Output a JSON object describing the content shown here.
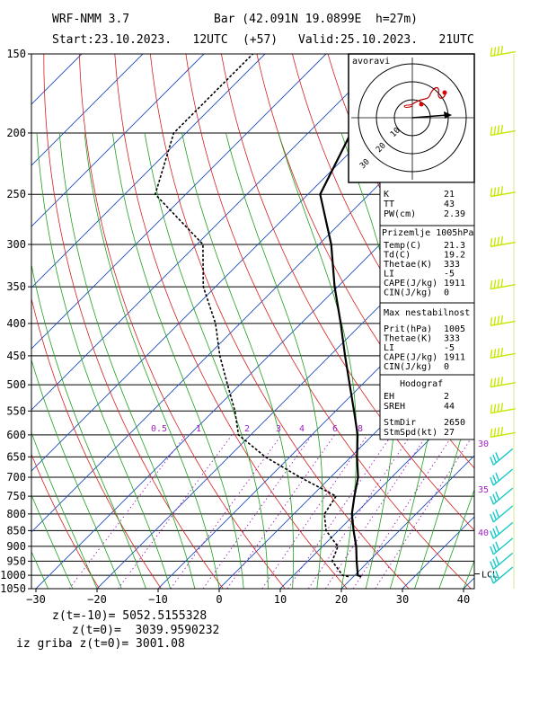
{
  "header": {
    "model": "WRF-NMM 3.7",
    "station": "Bar (42.091N 19.0899E  h=27m)",
    "start": "Start:23.10.2023.   12UTC",
    "offset": "(+57)",
    "valid": "Valid:25.10.2023.   21UTC"
  },
  "footer": {
    "line1": "z(t=-10)= 5052.5155328",
    "line2": "z(t=0)=  3039.9590232",
    "line3": "iz griba z(t=0)= 3001.08"
  },
  "hodograph": {
    "label": "avoravi",
    "ring_labels": [
      "10",
      "20",
      "30"
    ]
  },
  "indices": [
    {
      "name": "K",
      "value": "21"
    },
    {
      "name": "TT",
      "value": "43"
    },
    {
      "name": "PW(cm)",
      "value": "2.39"
    }
  ],
  "surface_block": {
    "title": "Prizemlje 1005hPa",
    "rows": [
      {
        "name": "Temp(C)",
        "value": "21.3"
      },
      {
        "name": "Td(C)",
        "value": "19.2"
      },
      {
        "name": "Thetae(K)",
        "value": "333"
      },
      {
        "name": "LI",
        "value": "-5"
      },
      {
        "name": "CAPE(J/kg)",
        "value": "1911"
      },
      {
        "name": "CIN(J/kg)",
        "value": "0"
      }
    ]
  },
  "max_block": {
    "title": "Max nestabilnost",
    "rows": [
      {
        "name": "Prit(hPa)",
        "value": "1005"
      },
      {
        "name": "Thetae(K)",
        "value": "333"
      },
      {
        "name": "LI",
        "value": "-5"
      },
      {
        "name": "CAPE(J/kg)",
        "value": "1911"
      },
      {
        "name": "CIN(J/kg)",
        "value": "0"
      }
    ]
  },
  "hodo_block": {
    "title": "Hodograf",
    "rows": [
      {
        "name": "EH",
        "value": "2"
      },
      {
        "name": "SREH",
        "value": "44"
      },
      {
        "name": "StmDir",
        "value": "2650"
      },
      {
        "name": "StmSpd(kt)",
        "value": "27"
      }
    ]
  },
  "mixing_ratio_labels": [
    "0.5",
    "1",
    "2",
    "3",
    "4",
    "6",
    "8"
  ],
  "theta_e_labels": [
    "30",
    "35",
    "40"
  ],
  "lcl_label": "LCL",
  "colors": {
    "isotherm": "#1e50b4",
    "dry_adiabat": "#d42020",
    "moist_adiabat": "#1ea01e",
    "mixing_ratio": "#a020c0",
    "theta_e_label": "#a020c0",
    "wind_barb": "#c8e600",
    "wind_barb_low": "#16c8c8",
    "profile": "#000000"
  },
  "chart_data": {
    "type": "skew-t",
    "x_axis_ticks": [
      "-30",
      "-20",
      "-10",
      "0",
      "10",
      "20",
      "30",
      "40"
    ],
    "x_values": [
      -30,
      -20,
      -10,
      0,
      10,
      20,
      30,
      40
    ],
    "y_axis_ticks": [
      "150",
      "200",
      "250",
      "300",
      "350",
      "400",
      "450",
      "500",
      "550",
      "600",
      "650",
      "700",
      "750",
      "800",
      "850",
      "900",
      "950",
      "1000",
      "1050"
    ],
    "pressure_levels": [
      150,
      200,
      250,
      300,
      350,
      400,
      450,
      500,
      550,
      600,
      650,
      700,
      750,
      800,
      850,
      900,
      950,
      1000,
      1050
    ],
    "temperature_profile": [
      {
        "p": 1005,
        "t": 21.3
      },
      {
        "p": 1000,
        "t": 20.5
      },
      {
        "p": 950,
        "t": 18.0
      },
      {
        "p": 900,
        "t": 15.5
      },
      {
        "p": 850,
        "t": 12.5
      },
      {
        "p": 800,
        "t": 9.5
      },
      {
        "p": 750,
        "t": 7.0
      },
      {
        "p": 700,
        "t": 4.5
      },
      {
        "p": 650,
        "t": 1.0
      },
      {
        "p": 600,
        "t": -2.5
      },
      {
        "p": 550,
        "t": -7.0
      },
      {
        "p": 500,
        "t": -12.0
      },
      {
        "p": 450,
        "t": -17.5
      },
      {
        "p": 400,
        "t": -23.5
      },
      {
        "p": 350,
        "t": -30.5
      },
      {
        "p": 300,
        "t": -38.0
      },
      {
        "p": 250,
        "t": -48.0
      },
      {
        "p": 200,
        "t": -53.0
      },
      {
        "p": 150,
        "t": -55.5
      }
    ],
    "dewpoint_profile": [
      {
        "p": 1005,
        "t": 19.2
      },
      {
        "p": 1000,
        "t": 18.0
      },
      {
        "p": 950,
        "t": 14.0
      },
      {
        "p": 900,
        "t": 12.5
      },
      {
        "p": 850,
        "t": 8.0
      },
      {
        "p": 800,
        "t": 5.0
      },
      {
        "p": 750,
        "t": 4.0
      },
      {
        "p": 700,
        "t": -5.0
      },
      {
        "p": 650,
        "t": -14.0
      },
      {
        "p": 600,
        "t": -22.0
      },
      {
        "p": 550,
        "t": -26.5
      },
      {
        "p": 500,
        "t": -32.0
      },
      {
        "p": 450,
        "t": -38.0
      },
      {
        "p": 400,
        "t": -44.0
      },
      {
        "p": 350,
        "t": -52.0
      },
      {
        "p": 300,
        "t": -59.0
      },
      {
        "p": 250,
        "t": -75.0
      },
      {
        "p": 200,
        "t": -82.0
      },
      {
        "p": 150,
        "t": -82.0
      }
    ],
    "wind_levels": [
      150,
      200,
      250,
      300,
      350,
      400,
      450,
      500,
      550,
      600,
      650,
      700,
      750,
      800,
      850,
      900,
      950,
      1000
    ]
  }
}
